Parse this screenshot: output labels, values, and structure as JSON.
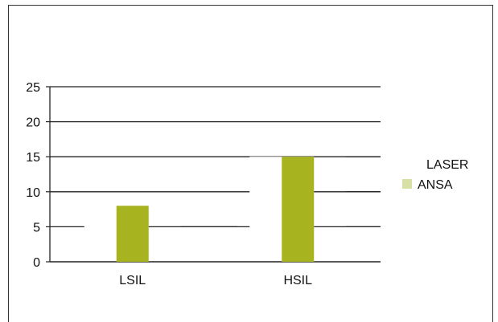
{
  "chart_data": {
    "type": "bar",
    "categories": [
      "LSIL",
      "HSIL"
    ],
    "series": [
      {
        "name": "LASER",
        "values": [
          0,
          0
        ],
        "color": "#ffffff"
      },
      {
        "name": "ANSA",
        "values": [
          8,
          15
        ],
        "color": "#a8b320"
      }
    ],
    "ylim": [
      0,
      25
    ],
    "yticks": [
      0,
      5,
      10,
      15,
      20,
      25
    ],
    "title": "",
    "xlabel": "",
    "ylabel": "",
    "grid": true,
    "legend_position": "right",
    "legend_swatch_color": "#d9e0a6"
  }
}
